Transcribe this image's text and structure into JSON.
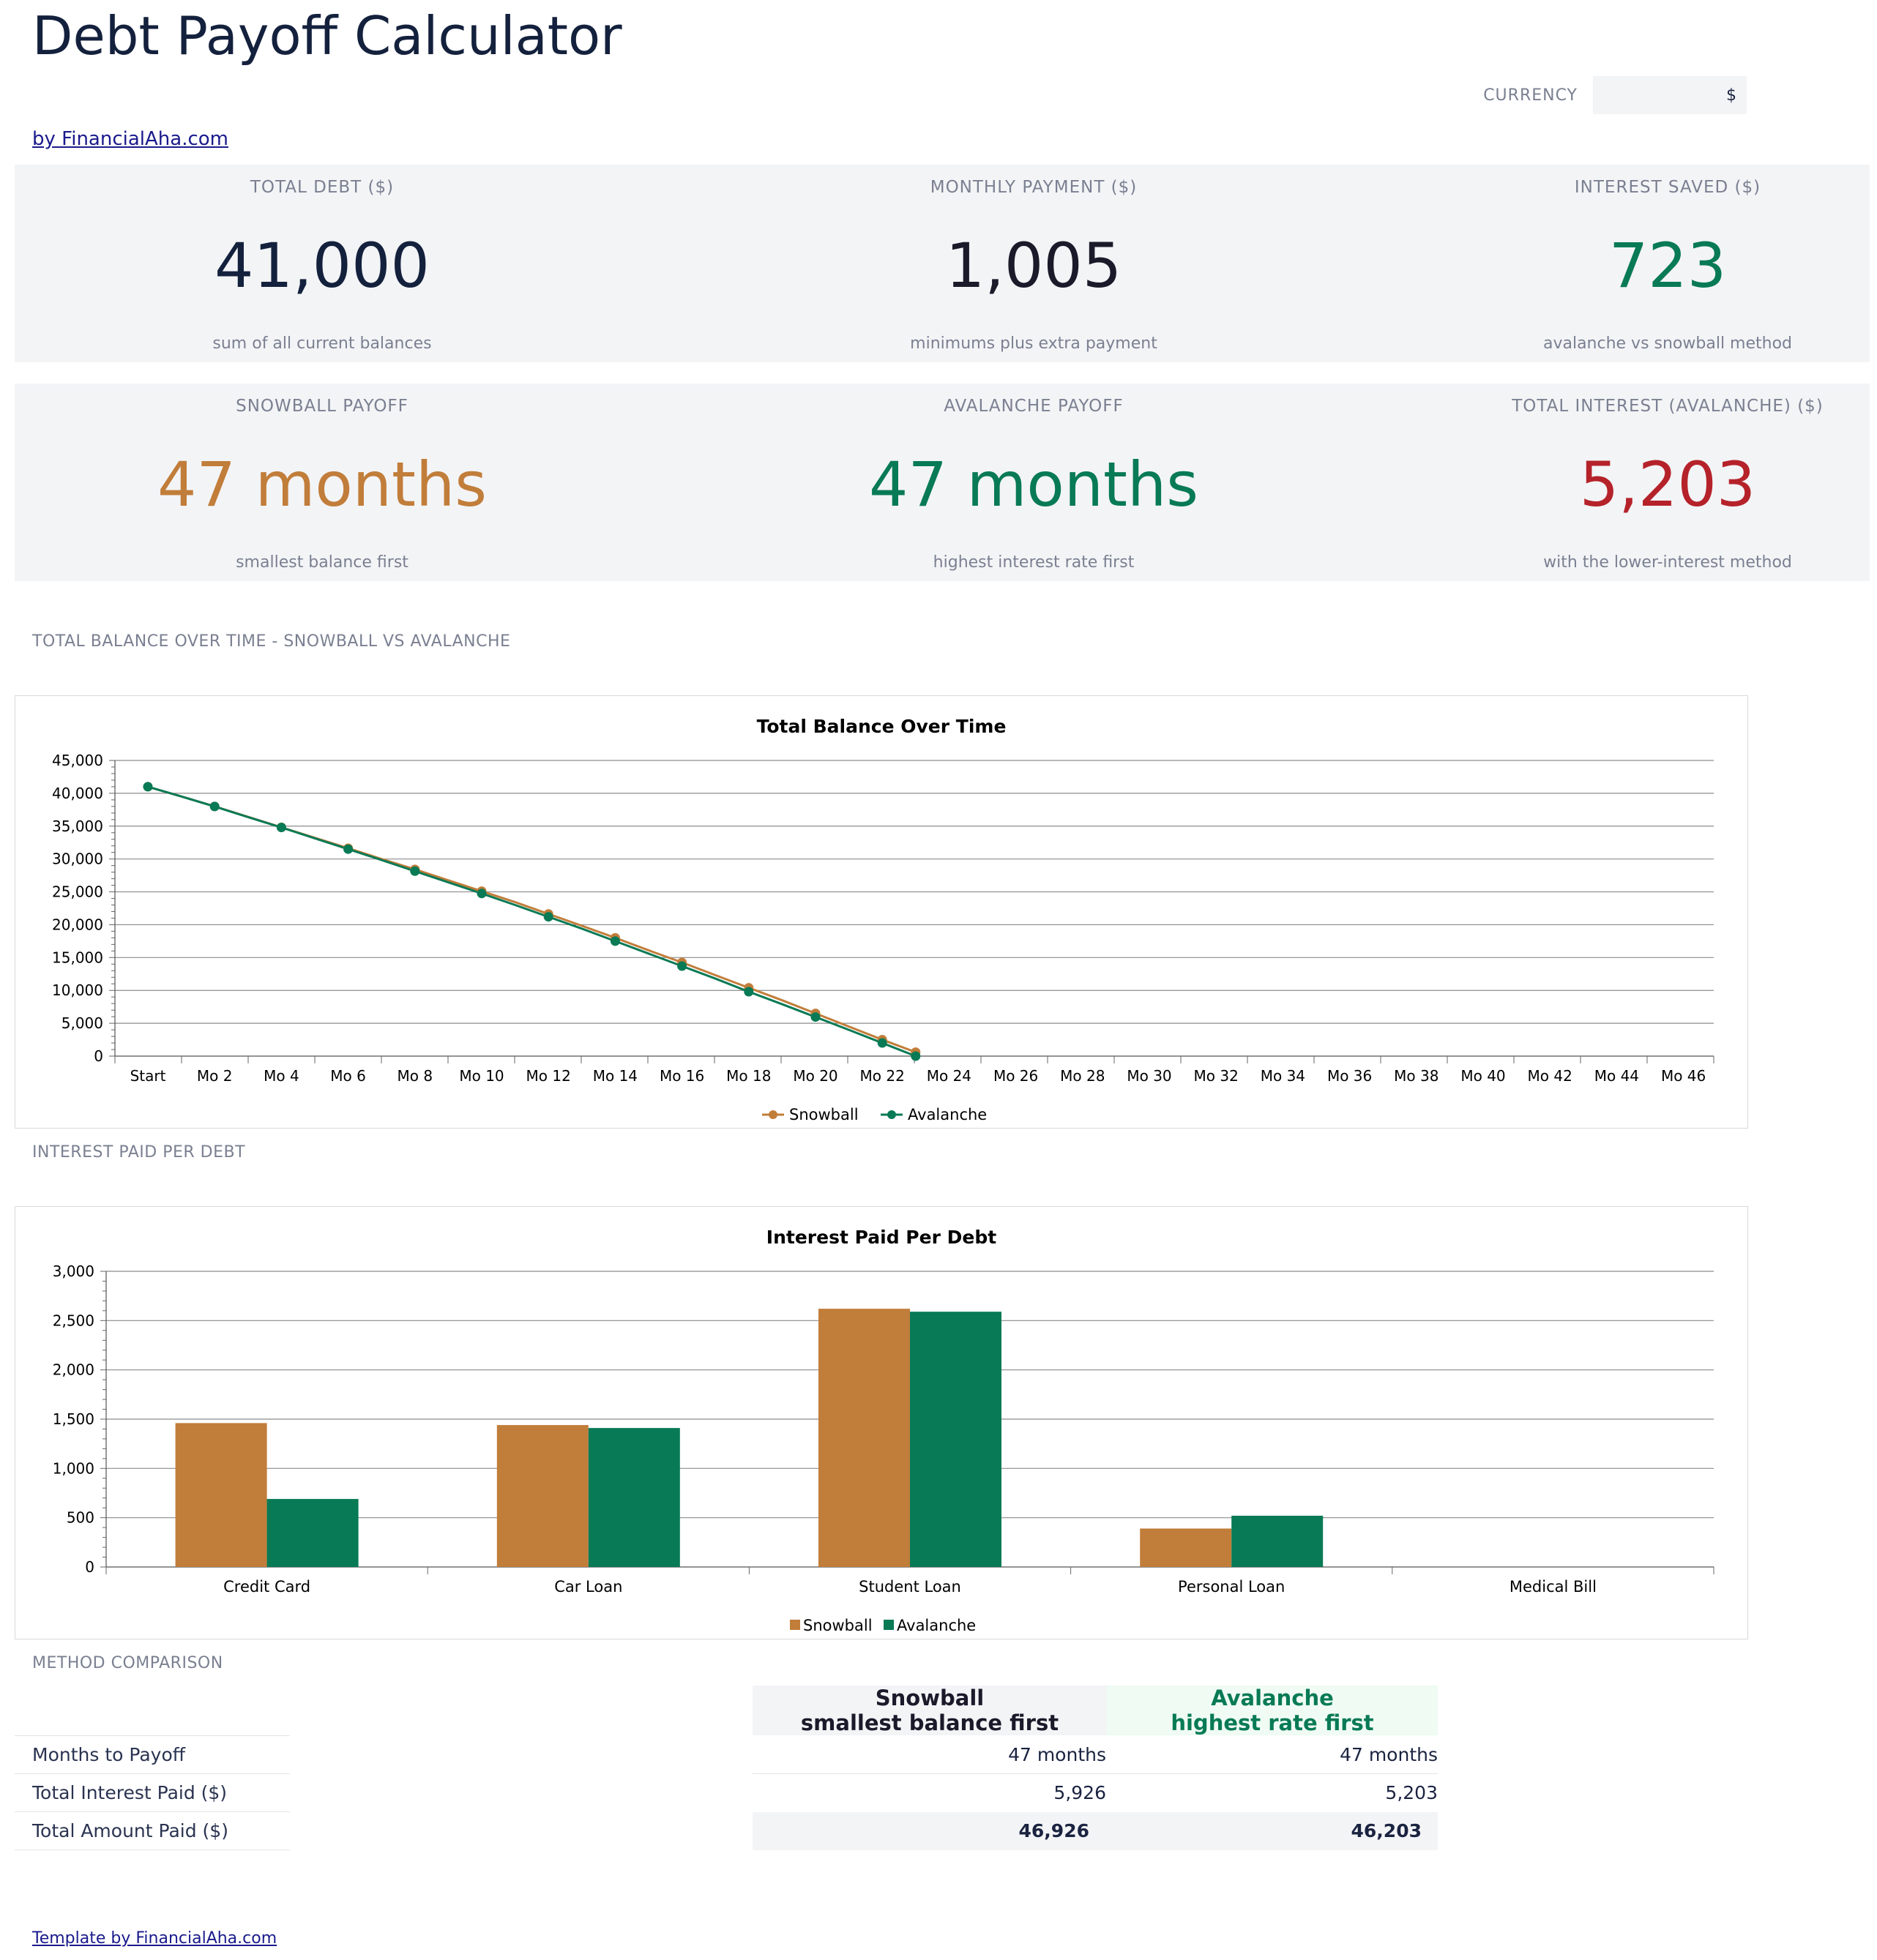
{
  "header": {
    "title": "Debt Payoff Calculator",
    "byline": "by FinancialAha.com",
    "currency_label": "CURRENCY",
    "currency_value": "$"
  },
  "kpis_row1": [
    {
      "label": "TOTAL DEBT ($)",
      "value": "41,000",
      "sub": "sum of all current balances",
      "color": "#14213d"
    },
    {
      "label": "MONTHLY PAYMENT ($)",
      "value": "1,005",
      "sub": "minimums plus extra payment",
      "color": "#1a1a2a"
    },
    {
      "label": "INTEREST SAVED ($)",
      "value": "723",
      "sub": "avalanche vs snowball method",
      "color": "#087a55"
    }
  ],
  "kpis_row2": [
    {
      "label": "SNOWBALL PAYOFF",
      "value": "47 months",
      "sub": "smallest balance first",
      "color": "#c17d3a"
    },
    {
      "label": "AVALANCHE PAYOFF",
      "value": "47 months",
      "sub": "highest interest rate first",
      "color": "#087a55"
    },
    {
      "label": "TOTAL INTEREST (AVALANCHE) ($)",
      "value": "5,203",
      "sub": "with the lower-interest method",
      "color": "#b5222a"
    }
  ],
  "sections": {
    "balance": "TOTAL BALANCE OVER TIME - SNOWBALL VS AVALANCHE",
    "interest": "INTEREST PAID PER DEBT",
    "comparison": "METHOD COMPARISON"
  },
  "colors": {
    "snowball": "#c17d3a",
    "avalanche": "#087a55"
  },
  "chart_data": [
    {
      "type": "line",
      "title": "Total Balance Over Time",
      "x_tick_labels": [
        "Start",
        "Mo 2",
        "Mo 4",
        "Mo 6",
        "Mo 8",
        "Mo 10",
        "Mo 12",
        "Mo 14",
        "Mo 16",
        "Mo 18",
        "Mo 20",
        "Mo 22",
        "Mo 24",
        "Mo 26",
        "Mo 28",
        "Mo 30",
        "Mo 32",
        "Mo 34",
        "Mo 36",
        "Mo 38",
        "Mo 40",
        "Mo 42",
        "Mo 44",
        "Mo 46"
      ],
      "ylim": [
        0,
        45000
      ],
      "y_ticks": [
        "0",
        "5,000",
        "10,000",
        "15,000",
        "20,000",
        "25,000",
        "30,000",
        "35,000",
        "40,000",
        "45,000"
      ],
      "grid": true,
      "legend": "bottom",
      "series": [
        {
          "name": "Snowball",
          "values": [
            41000,
            39520,
            38000,
            36420,
            34820,
            33230,
            31640,
            30000,
            28420,
            26760,
            25100,
            23440,
            21630,
            19840,
            18000,
            16100,
            14260,
            12320,
            10400,
            8500,
            6500,
            4500,
            2500,
            600
          ]
        },
        {
          "name": "Avalanche",
          "values": [
            41000,
            39520,
            37990,
            36380,
            34800,
            33150,
            31500,
            29850,
            28150,
            26450,
            24750,
            23000,
            21200,
            19400,
            17500,
            15600,
            13700,
            11800,
            9800,
            7900,
            5950,
            4000,
            2000,
            0
          ]
        }
      ]
    },
    {
      "type": "bar",
      "title": "Interest Paid Per Debt",
      "categories": [
        "Credit Card",
        "Car Loan",
        "Student Loan",
        "Personal Loan",
        "Medical Bill"
      ],
      "ylim": [
        0,
        3000
      ],
      "y_ticks": [
        "0",
        "500",
        "1,000",
        "1,500",
        "2,000",
        "2,500",
        "3,000"
      ],
      "grid": true,
      "legend": "bottom",
      "series": [
        {
          "name": "Snowball",
          "values": [
            1460,
            1440,
            2620,
            390,
            0
          ]
        },
        {
          "name": "Avalanche",
          "values": [
            690,
            1410,
            2590,
            520,
            0
          ]
        }
      ]
    }
  ],
  "comparison": {
    "snowball_header": [
      "Snowball",
      "smallest balance first"
    ],
    "avalanche_header": [
      "Avalanche",
      "highest rate first"
    ],
    "rows": [
      {
        "label": "Months to Payoff",
        "snowball": "47 months",
        "avalanche": "47 months"
      },
      {
        "label": "Total Interest Paid ($)",
        "snowball": "5,926",
        "avalanche": "5,203"
      },
      {
        "label": "Total Amount Paid ($)",
        "snowball": "46,926",
        "avalanche": "46,203"
      }
    ]
  },
  "footer": {
    "link": "Template by FinancialAha.com"
  }
}
